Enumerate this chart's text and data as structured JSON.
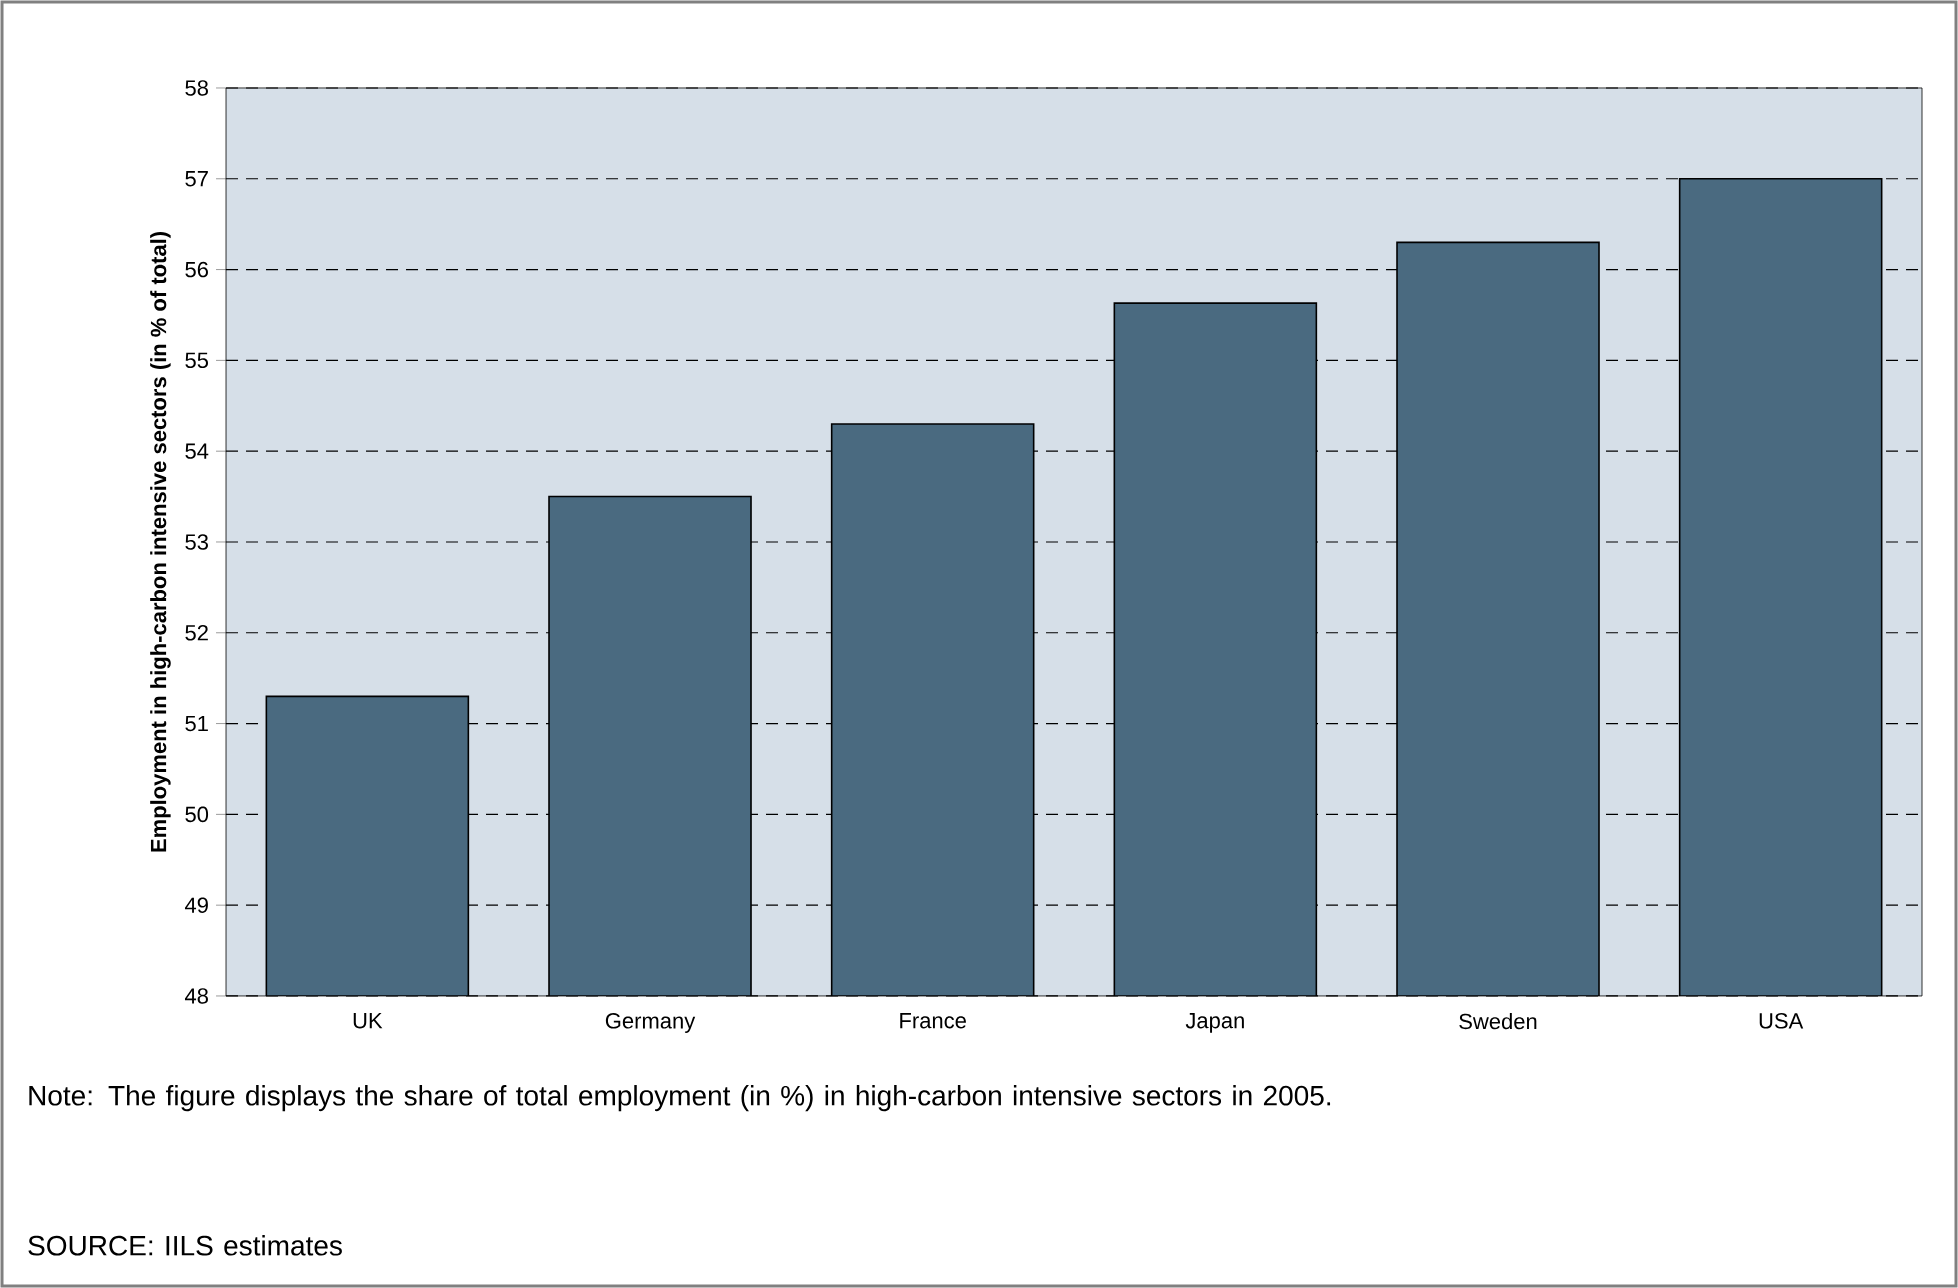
{
  "chart_data": {
    "type": "bar",
    "ylabel": "Employment in high-carbon intensive sectors (in % of total)",
    "categories": [
      "UK",
      "Germany",
      "France",
      "Japan",
      "Sweden",
      "USA"
    ],
    "values": [
      51.3,
      53.5,
      54.3,
      55.63,
      56.3,
      57.0
    ],
    "color": "#4a6a80",
    "ylim": [
      48,
      58
    ],
    "yticks": [
      48,
      49,
      50,
      51,
      52,
      53,
      54,
      55,
      56,
      57,
      58
    ],
    "grid": "y",
    "annotations": [
      "Note: The figure displays the share of total employment (in %) in high-carbon intensive sectors in 2005.",
      "SOURCE: IILS estimates"
    ]
  }
}
